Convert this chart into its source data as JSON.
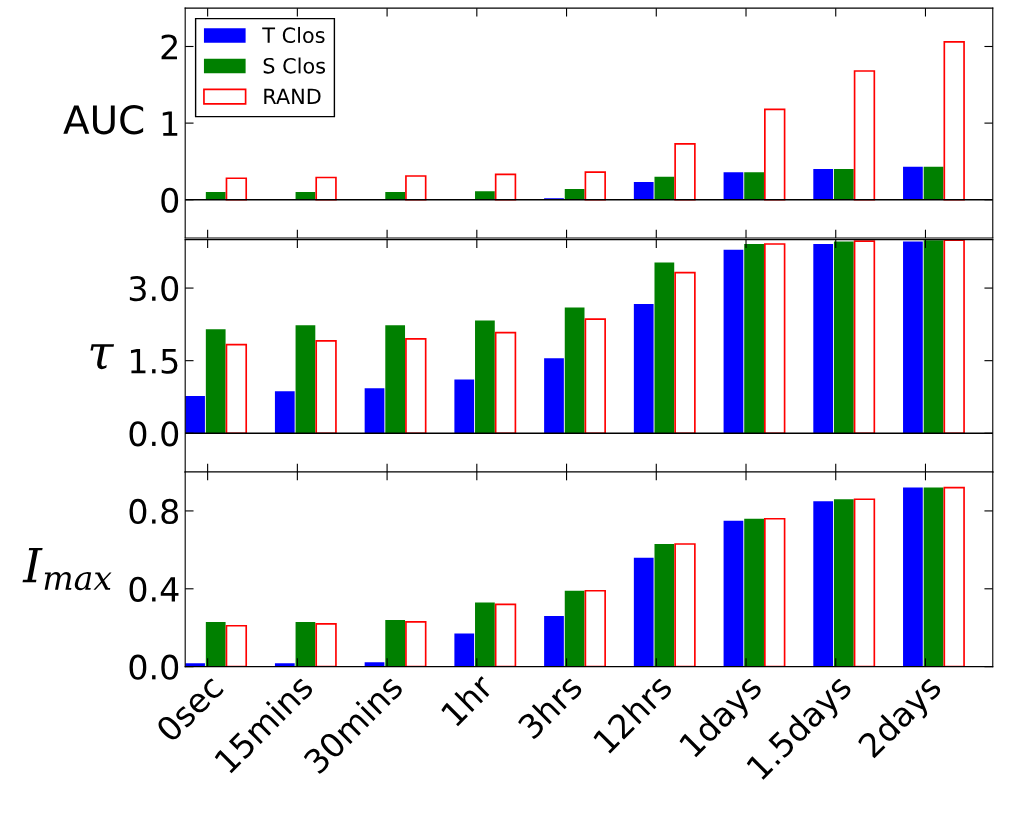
{
  "chart_data": [
    {
      "type": "bar",
      "ylabel": "AUC",
      "categories": [
        null,
        null,
        null,
        null,
        null,
        null,
        null,
        null,
        null
      ],
      "ylim": [
        -0.5,
        2.5
      ],
      "yticks": [
        0,
        1,
        2
      ],
      "tick_labels": "y",
      "legend": "top left",
      "ref_lines": [
        {
          "axis": "y",
          "value": 0,
          "color": "#000000"
        }
      ],
      "series": [
        {
          "name": "T Clos",
          "color": "#0000ff",
          "values": [
            0,
            0,
            0,
            0,
            0.02,
            0.23,
            0.36,
            0.4,
            0.43
          ]
        },
        {
          "name": "S Clos",
          "color": "#008000",
          "values": [
            0.1,
            0.1,
            0.1,
            0.11,
            0.14,
            0.3,
            0.36,
            0.4,
            0.43
          ]
        },
        {
          "name": "RAND",
          "color": "#ff0000",
          "values": [
            0.28,
            0.29,
            0.31,
            0.33,
            0.36,
            0.73,
            1.18,
            1.68,
            2.06
          ]
        }
      ]
    },
    {
      "type": "bar",
      "ylabel": "τ",
      "categories": [
        null,
        null,
        null,
        null,
        null,
        null,
        null,
        null,
        null
      ],
      "ylim": [
        -0.8,
        4.0
      ],
      "yticks": [
        {
          "value": 0,
          "label": "0.0"
        },
        {
          "value": 1.5,
          "label": "1.5"
        },
        {
          "value": 3,
          "label": "3.0"
        }
      ],
      "tick_labels": "y",
      "ref_lines": [
        {
          "axis": "y",
          "value": 0,
          "color": "#000000"
        }
      ],
      "series": [
        {
          "color": "#0000ff",
          "values": [
            0.77,
            0.87,
            0.93,
            1.11,
            1.55,
            2.67,
            3.79,
            3.91,
            3.96
          ]
        },
        {
          "color": "#008000",
          "values": [
            2.15,
            2.23,
            2.23,
            2.33,
            2.6,
            3.53,
            3.91,
            3.96,
            3.99
          ]
        },
        {
          "color": "#ff0000",
          "values": [
            1.83,
            1.91,
            1.95,
            2.08,
            2.36,
            3.32,
            3.91,
            3.97,
            3.99
          ]
        }
      ]
    },
    {
      "type": "bar",
      "ylabel": "I$_{max}$",
      "categories": [
        "0sec",
        "15mins",
        "30mins",
        "1hr",
        "3hrs",
        "12hrs",
        "1days",
        "1.5days",
        "2days"
      ],
      "ylim": [
        0,
        1.0
      ],
      "yticks": [
        {
          "value": 0,
          "label": "0.0"
        },
        {
          "value": 0.4,
          "label": "0.4"
        },
        {
          "value": 0.8,
          "label": "0.8"
        }
      ],
      "series": [
        {
          "color": "#0000ff",
          "values": [
            0.017,
            0.017,
            0.023,
            0.17,
            0.26,
            0.56,
            0.75,
            0.85,
            0.92
          ]
        },
        {
          "color": "#008000",
          "values": [
            0.23,
            0.23,
            0.24,
            0.33,
            0.39,
            0.63,
            0.76,
            0.86,
            0.92
          ]
        },
        {
          "color": "#ff0000",
          "values": [
            0.21,
            0.22,
            0.23,
            0.32,
            0.39,
            0.63,
            0.76,
            0.86,
            0.92
          ]
        }
      ]
    }
  ]
}
